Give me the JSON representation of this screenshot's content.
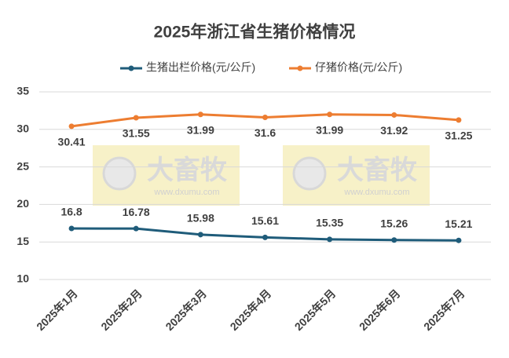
{
  "chart_data": {
    "type": "line",
    "title": "2025年浙江省生猪价格情况",
    "categories": [
      "2025年1月",
      "2025年2月",
      "2025年3月",
      "2025年4月",
      "2025年5月",
      "2025年6月",
      "2025年7月"
    ],
    "series": [
      {
        "name": "生猪出栏价格(元/公斤)",
        "color": "#1f5c7a",
        "values": [
          16.8,
          16.78,
          15.98,
          15.61,
          15.35,
          15.26,
          15.21
        ]
      },
      {
        "name": "仔猪价格(元/公斤)",
        "color": "#ed7d31",
        "values": [
          30.41,
          31.55,
          31.99,
          31.6,
          31.99,
          31.92,
          31.25
        ]
      }
    ],
    "ylim": [
      10,
      35
    ],
    "yticks": [
      10,
      15,
      20,
      25,
      30,
      35
    ],
    "grid": true,
    "legend": "top",
    "watermark_text": "大畜牧",
    "watermark_url": "www.dxumu.com"
  }
}
